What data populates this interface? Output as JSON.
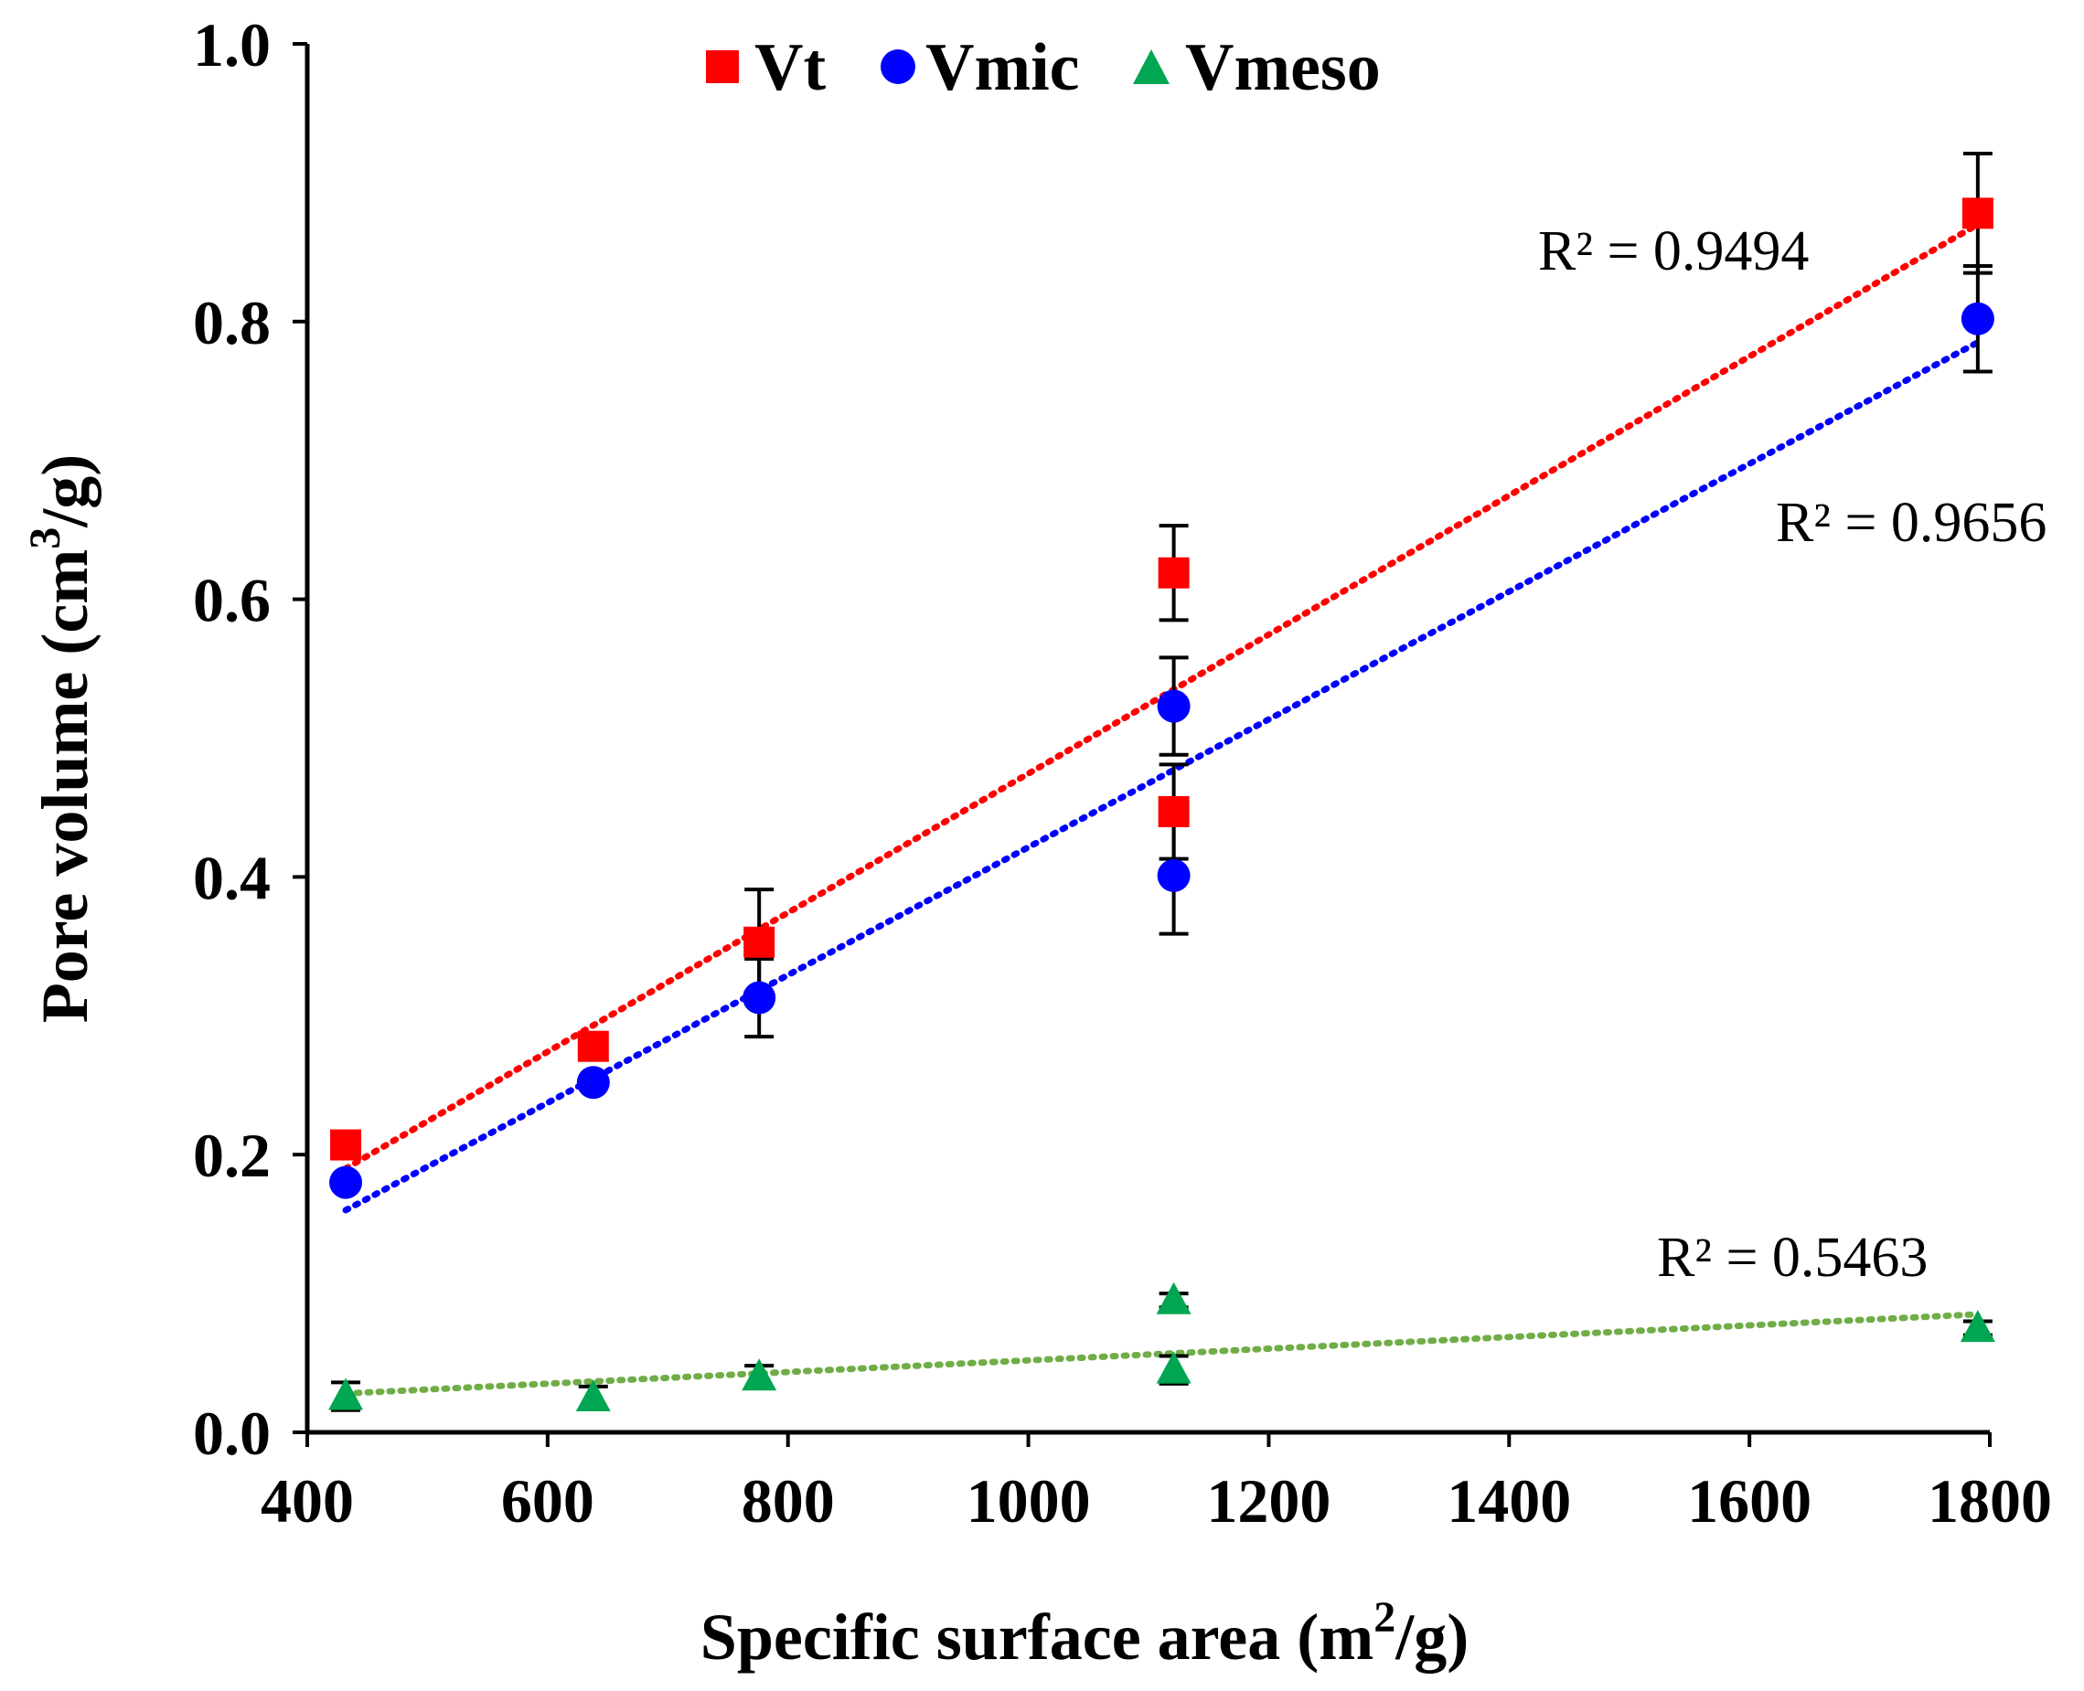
{
  "chart_data": {
    "type": "scatter",
    "xlabel_main": "Specific surface area (m",
    "xlabel_sup": "2",
    "xlabel_tail": "/g)",
    "ylabel_main": "Pore volume (cm",
    "ylabel_sup": "3",
    "ylabel_tail": "/g)",
    "xlim": [
      400,
      1800
    ],
    "ylim": [
      0,
      1.0
    ],
    "xticks": [
      "400",
      "600",
      "800",
      "1000",
      "1200",
      "1400",
      "1600",
      "1800"
    ],
    "yticks": [
      "0.0",
      "0.2",
      "0.4",
      "0.6",
      "0.8",
      "1.0"
    ],
    "grid": false,
    "legend_placement": "top-center",
    "series": [
      {
        "name": "Vt",
        "marker": "square",
        "color": "#ff0000",
        "x": [
          432,
          638,
          776,
          1121,
          1121,
          1790
        ],
        "y": [
          0.207,
          0.278,
          0.353,
          0.619,
          0.447,
          0.878
        ],
        "error": [
          0,
          0,
          0.038,
          0.034,
          0.034,
          0.043
        ],
        "trendline": {
          "x": [
            432,
            1790
          ],
          "y": [
            0.19,
            0.87
          ],
          "r2": "R² = 0.9494"
        }
      },
      {
        "name": "Vmic",
        "marker": "circle",
        "color": "#0000ff",
        "x": [
          432,
          638,
          776,
          1121,
          1121,
          1790
        ],
        "y": [
          0.18,
          0.252,
          0.313,
          0.523,
          0.401,
          0.802
        ],
        "error": [
          0,
          0,
          0.028,
          0.035,
          0.042,
          0.038
        ],
        "trendline": {
          "x": [
            432,
            1790
          ],
          "y": [
            0.16,
            0.785
          ],
          "r2": "R² = 0.9656"
        }
      },
      {
        "name": "Vmeso",
        "marker": "triangle",
        "color": "#00a651",
        "x": [
          432,
          638,
          776,
          1121,
          1121,
          1790
        ],
        "y": [
          0.026,
          0.025,
          0.04,
          0.095,
          0.045,
          0.075
        ],
        "error": [
          0.01,
          0.008,
          0.008,
          0.005,
          0.01,
          0.005
        ],
        "trendline": {
          "x": [
            432,
            1790
          ],
          "y": [
            0.028,
            0.085
          ],
          "r2": "R² = 0.5463",
          "color": "#70ad47"
        }
      }
    ]
  }
}
